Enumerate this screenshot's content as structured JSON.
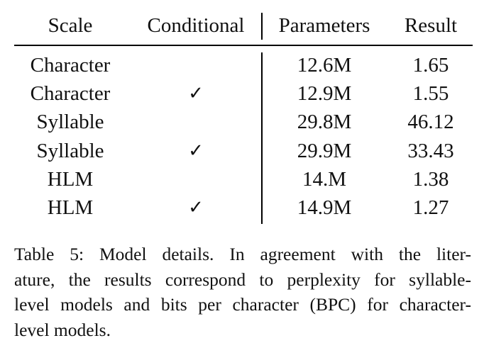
{
  "table": {
    "headers": {
      "scale": "Scale",
      "conditional": "Conditional",
      "parameters": "Parameters",
      "result": "Result"
    },
    "rows": [
      {
        "scale": "Character",
        "conditional": "",
        "parameters": "12.6M",
        "result": "1.65"
      },
      {
        "scale": "Character",
        "conditional": "✓",
        "parameters": "12.9M",
        "result": "1.55"
      },
      {
        "scale": "Syllable",
        "conditional": "",
        "parameters": "29.8M",
        "result": "46.12"
      },
      {
        "scale": "Syllable",
        "conditional": "✓",
        "parameters": "29.9M",
        "result": "33.43"
      },
      {
        "scale": "HLM",
        "conditional": "",
        "parameters": "14.M",
        "result": "1.38"
      },
      {
        "scale": "HLM",
        "conditional": "✓",
        "parameters": "14.9M",
        "result": "1.27"
      }
    ]
  },
  "caption": {
    "lines": [
      "Table 5: Model details. In agreement with the liter-",
      "ature, the results correspond to perplexity for syllable-",
      "level models and bits per character (BPC) for character-",
      "level models."
    ]
  }
}
